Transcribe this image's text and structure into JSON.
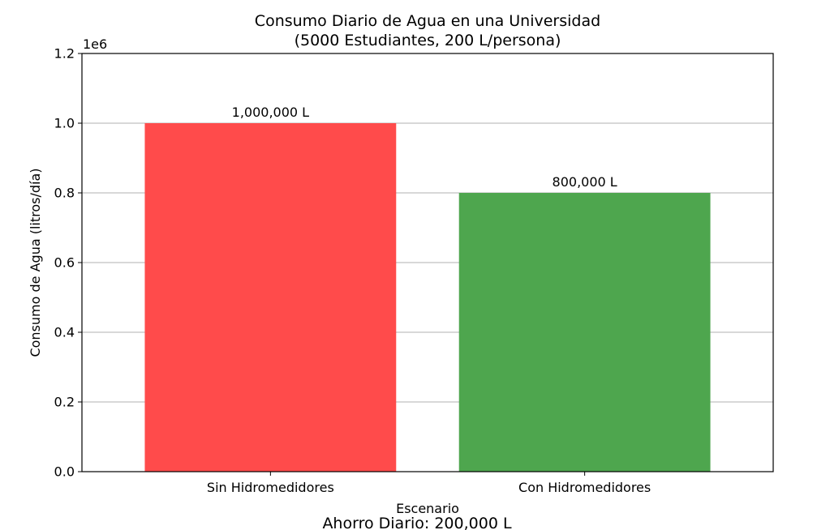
{
  "chart_data": {
    "type": "bar",
    "title": "Consumo Diario de Agua en una Universidad",
    "subtitle": "(5000 Estudiantes, 200 L/persona)",
    "xlabel": "Escenario",
    "ylabel": "Consumo de Agua (litros/día)",
    "y_scale_label": "1e6",
    "categories": [
      "Sin Hidromedidores",
      "Con Hidromedidores"
    ],
    "values": [
      1000000,
      800000
    ],
    "value_labels": [
      "1,000,000 L",
      "800,000 L"
    ],
    "colors": [
      "#ff4b4b",
      "#4ea64e"
    ],
    "ylim": [
      0,
      1200000
    ],
    "y_ticks": [
      0,
      200000,
      400000,
      600000,
      800000,
      1000000,
      1200000
    ],
    "y_tick_labels": [
      "0.0",
      "0.2",
      "0.4",
      "0.6",
      "0.8",
      "1.0",
      "1.2"
    ],
    "grid": "y",
    "footer_note": "Ahorro Diario: 200,000 L"
  }
}
